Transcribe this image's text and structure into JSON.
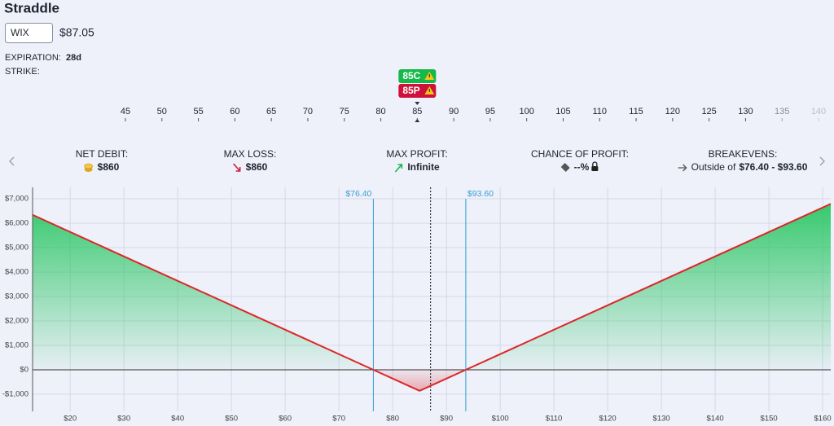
{
  "header": {
    "title": "Straddle",
    "symbol": "WIX",
    "price": "$87.05",
    "expiration_label": "EXPIRATION:",
    "expiration": "28d",
    "strike_label": "STRIKE:"
  },
  "strike_selector": {
    "ticks": [
      45,
      50,
      55,
      60,
      65,
      70,
      75,
      80,
      85,
      90,
      95,
      100,
      105,
      110,
      115,
      120,
      125,
      130,
      135,
      140
    ],
    "legs": [
      {
        "label": "85C",
        "strike": 85,
        "color": "#16b84a"
      },
      {
        "label": "85P",
        "strike": 85,
        "color": "#cf1039"
      }
    ]
  },
  "stats": [
    {
      "label": "NET DEBIT:",
      "value": "$860"
    },
    {
      "label": "MAX LOSS:",
      "value": "$860"
    },
    {
      "label": "MAX PROFIT:",
      "value": "Infinite"
    },
    {
      "label": "CHANCE OF PROFIT:",
      "value": "--%"
    },
    {
      "label": "BREAKEVENS:",
      "value_prefix": "Outside of",
      "value": "$76.40 - $93.60"
    }
  ],
  "chart_data": {
    "type": "line",
    "x": [
      13,
      76.4,
      85,
      93.6,
      161.5
    ],
    "values": [
      6340,
      0,
      -860,
      0,
      6790
    ],
    "profit_color": "#22c55e",
    "loss_color": "#dc2626",
    "xlim": [
      13,
      161.5
    ],
    "ylim": [
      -1700,
      7467
    ],
    "xticks": [
      {
        "value": 20,
        "label": "$20"
      },
      {
        "value": 30,
        "label": "$30"
      },
      {
        "value": 40,
        "label": "$40"
      },
      {
        "value": 50,
        "label": "$50"
      },
      {
        "value": 60,
        "label": "$60"
      },
      {
        "value": 70,
        "label": "$70"
      },
      {
        "value": 80,
        "label": "$80"
      },
      {
        "value": 90,
        "label": "$90"
      },
      {
        "value": 100,
        "label": "$100"
      },
      {
        "value": 110,
        "label": "$110"
      },
      {
        "value": 120,
        "label": "$120"
      },
      {
        "value": 130,
        "label": "$130"
      },
      {
        "value": 140,
        "label": "$140"
      },
      {
        "value": 150,
        "label": "$150"
      },
      {
        "value": 160,
        "label": "$160"
      }
    ],
    "yticks": [
      {
        "value": 7000,
        "label": "$7,000"
      },
      {
        "value": 6000,
        "label": "$6,000"
      },
      {
        "value": 5000,
        "label": "$5,000"
      },
      {
        "value": 4000,
        "label": "$4,000"
      },
      {
        "value": 3000,
        "label": "$3,000"
      },
      {
        "value": 2000,
        "label": "$2,000"
      },
      {
        "value": 1000,
        "label": "$1,000"
      },
      {
        "value": 0,
        "label": "$0"
      },
      {
        "value": -1000,
        "label": "-$1,000"
      }
    ],
    "grid": true,
    "breakevens": [
      {
        "x": 76.4,
        "label": "$76.40"
      },
      {
        "x": 93.6,
        "label": "$93.60"
      }
    ],
    "current_price": 87.05
  }
}
